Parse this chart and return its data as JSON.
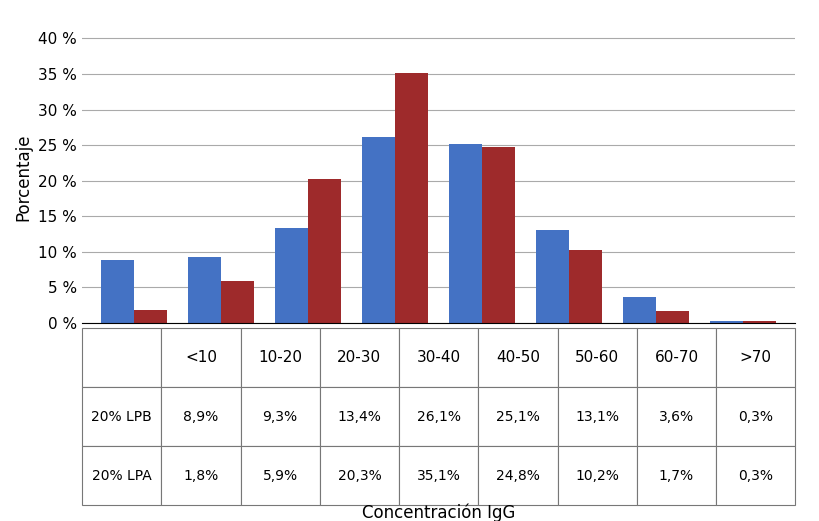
{
  "categories": [
    "<10",
    "10-20",
    "20-30",
    "30-40",
    "40-50",
    "50-60",
    "60-70",
    ">70"
  ],
  "lpb_values": [
    8.9,
    9.3,
    13.4,
    26.1,
    25.1,
    13.1,
    3.6,
    0.3
  ],
  "lpa_values": [
    1.8,
    5.9,
    20.3,
    35.1,
    24.8,
    10.2,
    1.7,
    0.3
  ],
  "lpb_label": "20% LPB",
  "lpa_label": "20% LPA",
  "lpb_color": "#4472C4",
  "lpa_color": "#9E2A2B",
  "ylabel": "Porcentaje",
  "xlabel": "Concentración IgG",
  "yticks": [
    0,
    5,
    10,
    15,
    20,
    25,
    30,
    35,
    40
  ],
  "ytick_labels": [
    "0 %",
    "5 %",
    "10 %",
    "15 %",
    "20 %",
    "25 %",
    "30 %",
    "35 %",
    "40 %"
  ],
  "ylim": [
    0,
    41
  ],
  "table_lpb": [
    "8,9%",
    "9,3%",
    "13,4%",
    "26,1%",
    "25,1%",
    "13,1%",
    "3,6%",
    "0,3%"
  ],
  "table_lpa": [
    "1,8%",
    "5,9%",
    "20,3%",
    "35,1%",
    "24,8%",
    "10,2%",
    "1,7%",
    "0,3%"
  ],
  "bg_color": "#FFFFFF",
  "grid_color": "#AAAAAA",
  "bar_width": 0.38
}
